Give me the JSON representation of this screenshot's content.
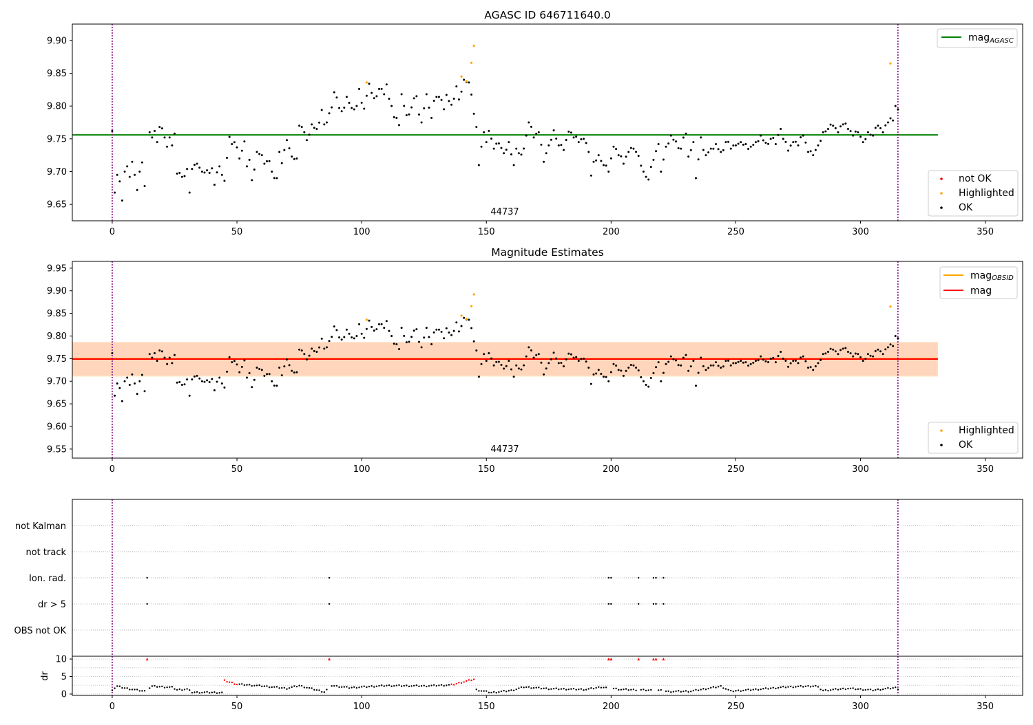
{
  "chart_data": [
    {
      "type": "scatter",
      "title": "AGASC ID 646711640.0",
      "xlabel": "",
      "ylabel": "",
      "xlim": [
        -16,
        365
      ],
      "ylim": [
        9.625,
        9.925
      ],
      "xticks": [
        "0",
        "50",
        "100",
        "150",
        "200",
        "250",
        "300",
        "350"
      ],
      "yticks": [
        "9.65",
        "9.70",
        "9.75",
        "9.80",
        "9.85",
        "9.90"
      ],
      "obsid_label": "44737",
      "obsid_boundaries": [
        0,
        315
      ],
      "reference_lines": [
        {
          "name": "mag_AGASC",
          "value": 9.756,
          "x_range": [
            -16,
            331
          ],
          "color": "#008000"
        }
      ],
      "legends": [
        {
          "position": "top-right",
          "entries": [
            {
              "label": "mag",
              "subscript": "AGASC",
              "color": "#008000",
              "marker": "line"
            }
          ]
        },
        {
          "position": "lower-right",
          "entries": [
            {
              "label": "not OK",
              "color": "#ff0000",
              "marker": "dot"
            },
            {
              "label": "Highlighted",
              "color": "#ffa500",
              "marker": "dot"
            },
            {
              "label": "OK",
              "color": "#000000",
              "marker": "dot"
            }
          ]
        }
      ],
      "highlighted_points": [
        [
          102,
          9.836
        ],
        [
          140,
          9.845
        ],
        [
          142,
          9.838
        ],
        [
          144,
          9.866
        ],
        [
          145,
          9.892
        ],
        [
          312,
          9.865
        ]
      ]
    },
    {
      "type": "scatter",
      "title": "Magnitude Estimates",
      "xlabel": "",
      "ylabel": "",
      "xlim": [
        -16,
        365
      ],
      "ylim": [
        9.53,
        9.965
      ],
      "xticks": [
        "0",
        "50",
        "100",
        "150",
        "200",
        "250",
        "300",
        "350"
      ],
      "yticks": [
        "9.55",
        "9.60",
        "9.65",
        "9.70",
        "9.75",
        "9.80",
        "9.85",
        "9.90",
        "9.95"
      ],
      "obsid_label": "44737",
      "obsid_boundaries": [
        0,
        315
      ],
      "reference_lines": [
        {
          "name": "mag_OBSID",
          "value": 9.75,
          "band": [
            9.71,
            9.787
          ],
          "x_range": [
            -16,
            331
          ],
          "color": "#ffa500"
        },
        {
          "name": "mag",
          "value": 9.749,
          "band": [
            9.712,
            9.786
          ],
          "x_range": [
            -16,
            331
          ],
          "color": "#ff0000"
        }
      ],
      "legends": [
        {
          "position": "top-right",
          "entries": [
            {
              "label": "mag",
              "subscript": "OBSID",
              "color": "#ffa500",
              "marker": "line"
            },
            {
              "label": "mag",
              "subscript": "",
              "color": "#ff0000",
              "marker": "line"
            }
          ]
        },
        {
          "position": "lower-right",
          "entries": [
            {
              "label": "Highlighted",
              "color": "#ffa500",
              "marker": "dot"
            },
            {
              "label": "OK",
              "color": "#000000",
              "marker": "dot"
            }
          ]
        }
      ],
      "highlighted_points": [
        [
          102,
          9.836
        ],
        [
          140,
          9.845
        ],
        [
          142,
          9.838
        ],
        [
          144,
          9.866
        ],
        [
          145,
          9.892
        ],
        [
          312,
          9.865
        ]
      ]
    },
    {
      "type": "scatter",
      "title": "",
      "xlabel": "",
      "ylabel": "",
      "xlim": [
        -16,
        365
      ],
      "categories": [
        "not Kalman",
        "not track",
        "Ion. rad.",
        "dr > 5",
        "OBS not OK"
      ],
      "obsid_boundaries": [
        0,
        315
      ],
      "flagged_x": {
        "Ion. rad.": [
          14,
          87,
          199,
          200,
          211,
          217,
          218,
          221
        ],
        "dr > 5": [
          14,
          87,
          199,
          200,
          211,
          217,
          218,
          221
        ]
      }
    },
    {
      "type": "scatter",
      "title": "",
      "xlabel": "",
      "ylabel": "dr",
      "xlim": [
        -16,
        365
      ],
      "ylim": [
        -0.4,
        10.8
      ],
      "xticks": [
        "0",
        "50",
        "100",
        "150",
        "200",
        "250",
        "300",
        "350"
      ],
      "yticks": [
        "0",
        "5",
        "10"
      ],
      "clipped_points_x": [
        14,
        87,
        199,
        200,
        211,
        217,
        218,
        221
      ],
      "red_segments": [
        [
          45,
          50
        ],
        [
          136,
          145
        ]
      ]
    }
  ]
}
